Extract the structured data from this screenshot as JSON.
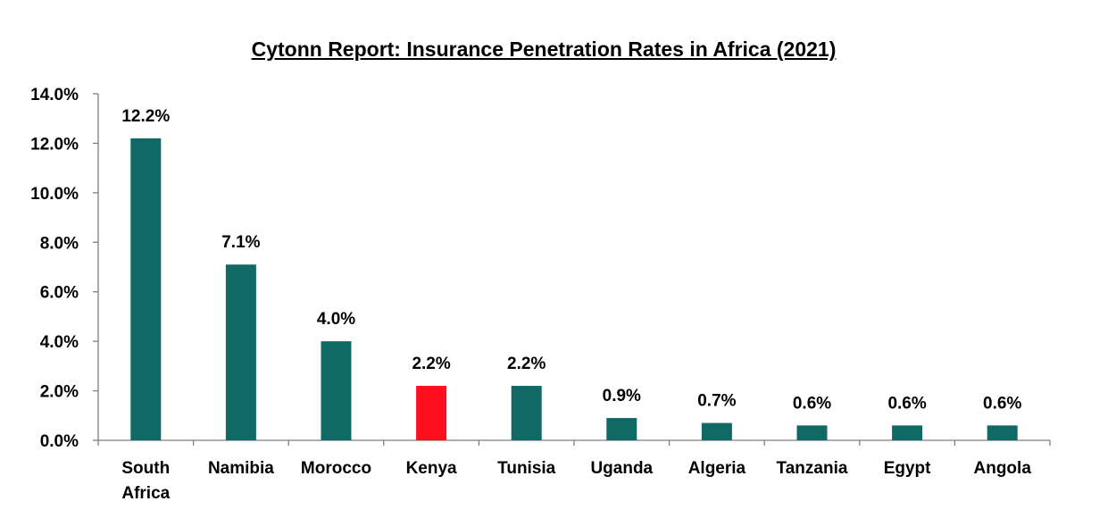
{
  "chart_data": {
    "type": "bar",
    "title": "Cytonn Report: Insurance Penetration Rates in Africa (2021)",
    "xlabel": "",
    "ylabel": "",
    "categories": [
      [
        "South",
        "Africa"
      ],
      [
        "Namibia"
      ],
      [
        "Morocco"
      ],
      [
        "Kenya"
      ],
      [
        "Tunisia"
      ],
      [
        "Uganda"
      ],
      [
        "Algeria"
      ],
      [
        "Tanzania"
      ],
      [
        "Egypt"
      ],
      [
        "Angola"
      ]
    ],
    "values": [
      12.2,
      7.1,
      4.0,
      2.2,
      2.2,
      0.9,
      0.7,
      0.6,
      0.6,
      0.6
    ],
    "data_labels": [
      "12.2%",
      "7.1%",
      "4.0%",
      "2.2%",
      "2.2%",
      "0.9%",
      "0.7%",
      "0.6%",
      "0.6%",
      "0.6%"
    ],
    "ylim": [
      0,
      14
    ],
    "yticks": [
      "0.0%",
      "2.0%",
      "4.0%",
      "6.0%",
      "8.0%",
      "10.0%",
      "12.0%",
      "14.0%"
    ],
    "grid": false,
    "legend": "none",
    "bar_color": "#116966",
    "highlight_color": "#ff0f1e",
    "highlight_index": 3
  }
}
